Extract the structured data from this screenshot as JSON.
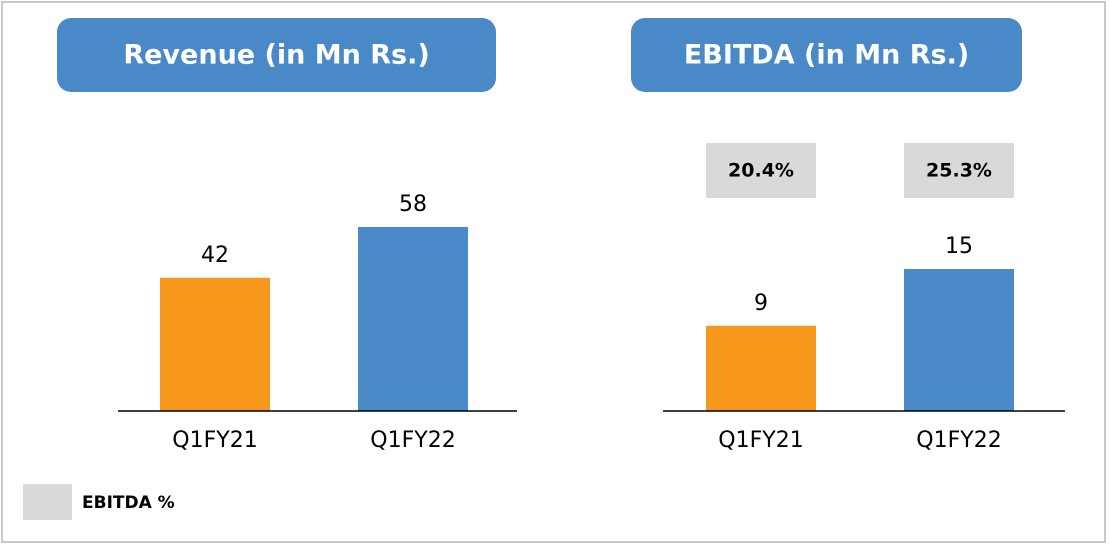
{
  "chart_data": [
    {
      "type": "bar",
      "title": "Revenue (in Mn Rs.)",
      "categories": [
        "Q1FY21",
        "Q1FY22"
      ],
      "values": [
        42,
        58
      ],
      "colors": [
        "#f7981d",
        "#4a8ac9"
      ]
    },
    {
      "type": "bar",
      "title": "EBITDA (in Mn Rs.)",
      "categories": [
        "Q1FY21",
        "Q1FY22"
      ],
      "values": [
        9,
        15
      ],
      "colors": [
        "#f7981d",
        "#4a8ac9"
      ],
      "margin": {
        "name": "EBITDA %",
        "values": [
          20.4,
          25.3
        ],
        "value_labels": [
          "20.4%",
          "25.3%"
        ],
        "color": "#d9d9d9"
      }
    }
  ]
}
